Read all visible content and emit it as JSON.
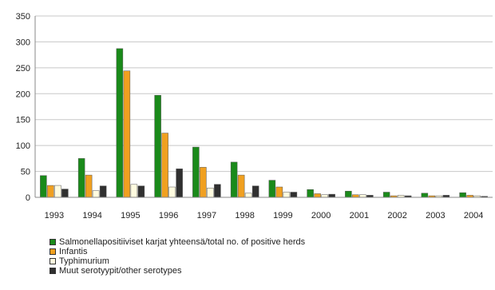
{
  "chart_data": {
    "type": "bar",
    "categories": [
      "1993",
      "1994",
      "1995",
      "1996",
      "1997",
      "1998",
      "1999",
      "2000",
      "2001",
      "2002",
      "2003",
      "2004"
    ],
    "ylim": [
      0,
      350
    ],
    "yticks": [
      "0",
      "50",
      "100",
      "150",
      "200",
      "250",
      "300",
      "350"
    ],
    "series": [
      {
        "name": "Salmonellapositiiviset karjat yhteensä/total no. of positive herds",
        "color": "#1a8a1a",
        "values": [
          42,
          75,
          287,
          197,
          97,
          68,
          33,
          15,
          12,
          10,
          8,
          9
        ]
      },
      {
        "name": "Infantis",
        "color": "#f0a020",
        "values": [
          23,
          43,
          244,
          124,
          58,
          43,
          20,
          7,
          5,
          3,
          3,
          4
        ]
      },
      {
        "name": "Typhimurium",
        "color": "#fffbe0",
        "values": [
          23,
          13,
          25,
          20,
          18,
          8,
          10,
          5,
          5,
          4,
          3,
          3
        ]
      },
      {
        "name": "Muut serotyypit/other serotypes",
        "color": "#303030",
        "values": [
          16,
          22,
          22,
          55,
          25,
          22,
          10,
          6,
          4,
          3,
          4,
          2
        ]
      }
    ],
    "grid": true,
    "legend_position": "bottom-left"
  }
}
